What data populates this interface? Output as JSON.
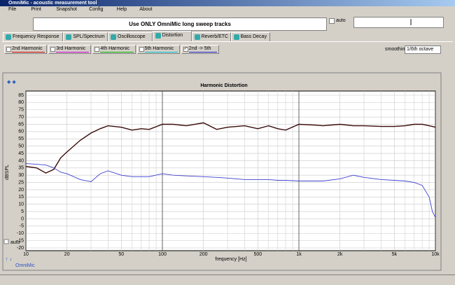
{
  "window": {
    "title": "OmniMic - acoustic measurement tool"
  },
  "menu": [
    "File",
    "Print",
    "Snapshot",
    "Config",
    "Help",
    "About"
  ],
  "banner": "Use ONLY OmniMic long sweep tracks",
  "auto_label": "auto",
  "tabs": [
    {
      "label": "Frequency Response",
      "active": false
    },
    {
      "label": "SPL/Spectrum",
      "active": false
    },
    {
      "label": "Oscilloscope",
      "active": false
    },
    {
      "label": "Distortion",
      "active": true
    },
    {
      "label": "Reverb/ETC",
      "active": false
    },
    {
      "label": "Bass Decay",
      "active": false
    }
  ],
  "harmonics": [
    {
      "label": "2nd Harmonic",
      "color": "#d00000",
      "checked": false
    },
    {
      "label": "3rd Harmonic",
      "color": "#d000d0",
      "checked": false
    },
    {
      "label": "4th Harmonic",
      "color": "#00b000",
      "checked": false
    },
    {
      "label": "5th Harmonic",
      "color": "#00c0d0",
      "checked": false
    },
    {
      "label": "2nd -> 5th",
      "color": "#2020d0",
      "checked": true
    }
  ],
  "smoothing": {
    "label": "smoothing",
    "value": "1/6th octave"
  },
  "footer": {
    "brand": "OmniMic",
    "auto_label": "auto"
  },
  "chart_data": {
    "type": "line",
    "title": "Harmonic Distortion",
    "xlabel": "frequency [Hz]",
    "ylabel": "dBSPL",
    "xscale": "log",
    "grid": true,
    "x": [
      10,
      12,
      14,
      16,
      18,
      20,
      25,
      30,
      35,
      40,
      50,
      60,
      70,
      80,
      100,
      120,
      150,
      200,
      250,
      300,
      400,
      500,
      600,
      700,
      800,
      1000,
      1300,
      1500,
      2000,
      2500,
      3000,
      4000,
      5000,
      6000,
      7000,
      8000,
      9000,
      9500,
      10000
    ],
    "series": [
      {
        "color": "#3a0a0a",
        "values": [
          36,
          35,
          31.5,
          34,
          42,
          46,
          54,
          59,
          62,
          64,
          63,
          61,
          62,
          61.5,
          65,
          65,
          64,
          66,
          61.5,
          63,
          64,
          62,
          64,
          62,
          61,
          65,
          64.5,
          64,
          65,
          64,
          64,
          63.5,
          63.5,
          64,
          65,
          65,
          64,
          63.5,
          63
        ]
      },
      {
        "color": "#4040d0",
        "values": [
          38,
          37.5,
          37,
          35,
          32,
          31,
          27,
          25.5,
          31,
          33,
          30,
          29,
          29,
          29,
          31,
          30,
          29.5,
          29,
          28.5,
          28,
          27,
          27,
          27,
          26.5,
          26.5,
          26,
          26,
          26,
          27.5,
          30,
          28.5,
          27,
          26.5,
          26,
          25,
          23,
          15,
          5,
          1
        ]
      }
    ],
    "xlim": [
      10,
      10000
    ],
    "ylim": [
      -20,
      85
    ],
    "xticks": [
      10,
      20,
      50,
      100,
      200,
      500,
      {
        "value": 1000,
        "label": "1k"
      },
      {
        "value": 2000,
        "label": "2k"
      },
      {
        "value": 5000,
        "label": "5k"
      },
      {
        "value": 10000,
        "label": "10k"
      }
    ],
    "xticks_minor": [
      30,
      40,
      60,
      70,
      80,
      90,
      300,
      400,
      600,
      700,
      800,
      900,
      3000,
      4000,
      6000,
      7000,
      8000,
      9000
    ],
    "yticks": [
      -20,
      -15,
      -10,
      -5,
      0,
      5,
      10,
      15,
      20,
      25,
      30,
      35,
      40,
      45,
      50,
      55,
      60,
      65,
      70,
      75,
      80,
      85
    ]
  }
}
